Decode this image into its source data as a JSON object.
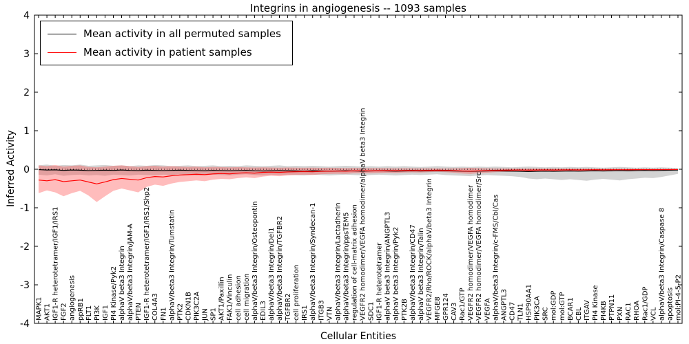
{
  "title": "Integrins in angiogenesis -- 1093 samples",
  "chart_data": {
    "type": "line",
    "title": "Integrins in angiogenesis -- 1093 samples",
    "xlabel": "Cellular Entities",
    "ylabel": "Inferred Activity",
    "ylim": [
      -4,
      4
    ],
    "yticks": [
      4,
      3,
      2,
      1,
      0,
      -1,
      -2,
      -3,
      -4
    ],
    "grid": false,
    "zero_line_style": "dotted",
    "legend_position": "upper left",
    "categories": [
      "MAPK1",
      "AKT1",
      "IGF1-R heterotetramer/IGF1/IRS1",
      "FGF2",
      "angiogenesis",
      "ppRB1",
      "FLT1",
      "PI3K",
      "IGF1",
      "PI4 Kinase/Pyk2",
      "alphaV beta3 Integrin",
      "alphaV/beta3 Integrin/JAM-A",
      "PTEN",
      "IGF1-R heterotetramer/IGF1/IRS1/Shp2",
      "COL4A3",
      "FN1",
      "alphaV/beta3 Integrin/Tumstatin",
      "PTK2",
      "CDKN1B",
      "PIK3C2A",
      "JUN",
      "SP1",
      "AKT1/Paxillin",
      "FAK1/Vinculin",
      "cell adhesion",
      "cell migration",
      "alphaV/beta3 Integrin/Osteopontin",
      "EDIL3",
      "alphaV/beta3 Integrin/Del1",
      "alphaV/beta3 Integrin/TGFBR2",
      "TGFBR2",
      "cell proliferation",
      "IRS1",
      "alphaV/beta3 Integrin/Syndecan-1",
      "ITGB3",
      "VTN",
      "alphaV/beta3 Integrin/Lactadherin",
      "alphaV/beta3 Integrin/ppsTEM5",
      "regulation of cell-matrix adhesion",
      "VEGFR2 homodimer/VEGFA homodimer/alphaV beta3 Integrin",
      "SDC1",
      "IGF1-R heterotetramer",
      "alphaV beta3 Integrin/ANGPTL3",
      "alphaV beta3 Integrin/Pyk2",
      "PTK2B",
      "alphaV/beta3 Integrin/CD47",
      "alphaV beta3 Integrin/Talin",
      "VEGFR2/Rho/ROCK/alphaV/beta3 Integrin",
      "MFGE8",
      "GPR124",
      "CAV3",
      "Rac1/GTP",
      "VEGFR2 homodimer/VEGFA homodimer",
      "VEGFR2 homodimer/VEGFA homodimer/Src",
      "VEGFA",
      "alphaV/beta3 Integrin/c-FMS/Cbl/Cas",
      "ANGPTL3",
      "CD47",
      "TLN1",
      "HSP90AA1",
      "PIK3CA",
      "SRC",
      "mol:GDP",
      "mol:GTP",
      "BCAR1",
      "CBL",
      "ITGAV",
      "PI4 Kinase",
      "PI4KB",
      "PTPN11",
      "PXN",
      "RAC1",
      "RHOA",
      "Rac1/GDP",
      "VCL",
      "alphaV/beta3 Integrin/Caspase 8",
      "apoptosis",
      "mol:PI-4-5-P2"
    ],
    "series": [
      {
        "name": "Mean activity in all permuted samples",
        "color": "#000000",
        "band_color": "#808080",
        "band_opacity": 0.35,
        "values": [
          -0.01,
          -0.02,
          -0.015,
          -0.03,
          -0.02,
          -0.025,
          -0.035,
          -0.03,
          -0.025,
          -0.03,
          -0.02,
          -0.03,
          -0.035,
          -0.025,
          -0.03,
          -0.035,
          -0.03,
          -0.025,
          -0.03,
          -0.035,
          -0.04,
          -0.03,
          -0.035,
          -0.04,
          -0.035,
          -0.03,
          -0.04,
          -0.045,
          -0.04,
          -0.035,
          -0.04,
          -0.045,
          -0.05,
          -0.04,
          -0.045,
          -0.05,
          -0.045,
          -0.04,
          -0.045,
          -0.05,
          -0.045,
          -0.04,
          -0.045,
          -0.05,
          -0.045,
          -0.04,
          -0.045,
          -0.04,
          -0.035,
          -0.04,
          -0.045,
          -0.05,
          -0.055,
          -0.05,
          -0.045,
          -0.04,
          -0.045,
          -0.05,
          -0.055,
          -0.06,
          -0.055,
          -0.05,
          -0.055,
          -0.05,
          -0.045,
          -0.05,
          -0.045,
          -0.04,
          -0.045,
          -0.04,
          -0.035,
          -0.04,
          -0.035,
          -0.03,
          -0.035,
          -0.03,
          -0.025,
          -0.02
        ],
        "band_upper": [
          0.1,
          0.12,
          0.09,
          0.11,
          0.1,
          0.12,
          0.09,
          0.1,
          0.11,
          0.09,
          0.1,
          0.08,
          0.1,
          0.09,
          0.11,
          0.1,
          0.08,
          0.09,
          0.1,
          0.08,
          0.09,
          0.1,
          0.08,
          0.09,
          0.08,
          0.1,
          0.09,
          0.08,
          0.09,
          0.1,
          0.08,
          0.09,
          0.08,
          0.09,
          0.08,
          0.07,
          0.08,
          0.09,
          0.08,
          0.07,
          0.08,
          0.07,
          0.08,
          0.07,
          0.08,
          0.07,
          0.06,
          0.07,
          0.08,
          0.07,
          0.06,
          0.07,
          0.06,
          0.07,
          0.06,
          0.07,
          0.06,
          0.05,
          0.06,
          0.07,
          0.06,
          0.05,
          0.06,
          0.05,
          0.06,
          0.05,
          0.06,
          0.05,
          0.04,
          0.05,
          0.06,
          0.05,
          0.04,
          0.05,
          0.04,
          0.05,
          0.04,
          0.03
        ],
        "band_lower": [
          -0.14,
          -0.16,
          -0.13,
          -0.17,
          -0.15,
          -0.14,
          -0.16,
          -0.15,
          -0.17,
          -0.14,
          -0.15,
          -0.16,
          -0.14,
          -0.15,
          -0.16,
          -0.14,
          -0.15,
          -0.13,
          -0.14,
          -0.16,
          -0.15,
          -0.14,
          -0.15,
          -0.16,
          -0.14,
          -0.13,
          -0.15,
          -0.16,
          -0.14,
          -0.15,
          -0.14,
          -0.15,
          -0.16,
          -0.14,
          -0.15,
          -0.16,
          -0.15,
          -0.14,
          -0.15,
          -0.16,
          -0.15,
          -0.14,
          -0.15,
          -0.16,
          -0.15,
          -0.14,
          -0.15,
          -0.14,
          -0.13,
          -0.15,
          -0.16,
          -0.17,
          -0.18,
          -0.16,
          -0.15,
          -0.16,
          -0.17,
          -0.18,
          -0.2,
          -0.24,
          -0.26,
          -0.24,
          -0.26,
          -0.28,
          -0.26,
          -0.28,
          -0.3,
          -0.27,
          -0.25,
          -0.27,
          -0.29,
          -0.26,
          -0.24,
          -0.22,
          -0.23,
          -0.2,
          -0.16,
          -0.12
        ]
      },
      {
        "name": "Mean activity in patient samples",
        "color": "#ff0000",
        "band_color": "#ff4040",
        "band_opacity": 0.35,
        "values": [
          -0.28,
          -0.3,
          -0.27,
          -0.32,
          -0.3,
          -0.28,
          -0.33,
          -0.38,
          -0.33,
          -0.27,
          -0.24,
          -0.26,
          -0.28,
          -0.22,
          -0.19,
          -0.2,
          -0.17,
          -0.15,
          -0.14,
          -0.13,
          -0.14,
          -0.12,
          -0.11,
          -0.12,
          -0.1,
          -0.09,
          -0.1,
          -0.08,
          -0.075,
          -0.08,
          -0.07,
          -0.065,
          -0.06,
          -0.065,
          -0.055,
          -0.05,
          -0.048,
          -0.05,
          -0.042,
          -0.04,
          -0.042,
          -0.038,
          -0.035,
          -0.038,
          -0.032,
          -0.03,
          -0.032,
          -0.028,
          -0.025,
          -0.028,
          -0.035,
          -0.045,
          -0.05,
          -0.042,
          -0.035,
          -0.028,
          -0.025,
          -0.022,
          -0.02,
          -0.022,
          -0.02,
          -0.018,
          -0.02,
          -0.018,
          -0.016,
          -0.018,
          -0.015,
          -0.014,
          -0.015,
          -0.013,
          -0.012,
          -0.013,
          -0.011,
          -0.01,
          -0.011,
          -0.01,
          -0.009,
          -0.008
        ],
        "band_upper": [
          0.1,
          0.08,
          0.11,
          0.07,
          0.09,
          0.1,
          0.06,
          0.05,
          0.07,
          0.09,
          0.1,
          0.08,
          0.06,
          0.08,
          0.09,
          0.07,
          0.08,
          0.07,
          0.06,
          0.07,
          0.05,
          0.06,
          0.055,
          0.05,
          0.055,
          0.05,
          0.045,
          0.05,
          0.045,
          0.04,
          0.045,
          0.04,
          0.038,
          0.04,
          0.035,
          0.038,
          0.033,
          0.03,
          0.033,
          0.03,
          0.028,
          0.03,
          0.027,
          0.025,
          0.027,
          0.024,
          0.022,
          0.024,
          0.022,
          0.02,
          0.025,
          0.03,
          0.035,
          0.03,
          0.025,
          0.02,
          0.02,
          0.018,
          0.018,
          0.017,
          0.017,
          0.016,
          0.016,
          0.015,
          0.015,
          0.014,
          0.014,
          0.013,
          0.013,
          0.012,
          0.012,
          0.011,
          0.011,
          0.01,
          0.01,
          0.01,
          0.01,
          0.01
        ],
        "band_lower": [
          -0.62,
          -0.55,
          -0.6,
          -0.7,
          -0.62,
          -0.56,
          -0.68,
          -0.85,
          -0.7,
          -0.56,
          -0.5,
          -0.55,
          -0.6,
          -0.46,
          -0.4,
          -0.43,
          -0.37,
          -0.33,
          -0.31,
          -0.29,
          -0.31,
          -0.27,
          -0.25,
          -0.26,
          -0.23,
          -0.21,
          -0.23,
          -0.19,
          -0.17,
          -0.18,
          -0.16,
          -0.15,
          -0.14,
          -0.15,
          -0.13,
          -0.12,
          -0.115,
          -0.12,
          -0.105,
          -0.1,
          -0.105,
          -0.095,
          -0.09,
          -0.095,
          -0.085,
          -0.08,
          -0.085,
          -0.075,
          -0.07,
          -0.075,
          -0.09,
          -0.11,
          -0.12,
          -0.1,
          -0.09,
          -0.075,
          -0.07,
          -0.065,
          -0.06,
          -0.065,
          -0.06,
          -0.055,
          -0.06,
          -0.055,
          -0.05,
          -0.055,
          -0.05,
          -0.045,
          -0.05,
          -0.045,
          -0.04,
          -0.045,
          -0.04,
          -0.038,
          -0.04,
          -0.035,
          -0.032,
          -0.03
        ]
      }
    ]
  }
}
